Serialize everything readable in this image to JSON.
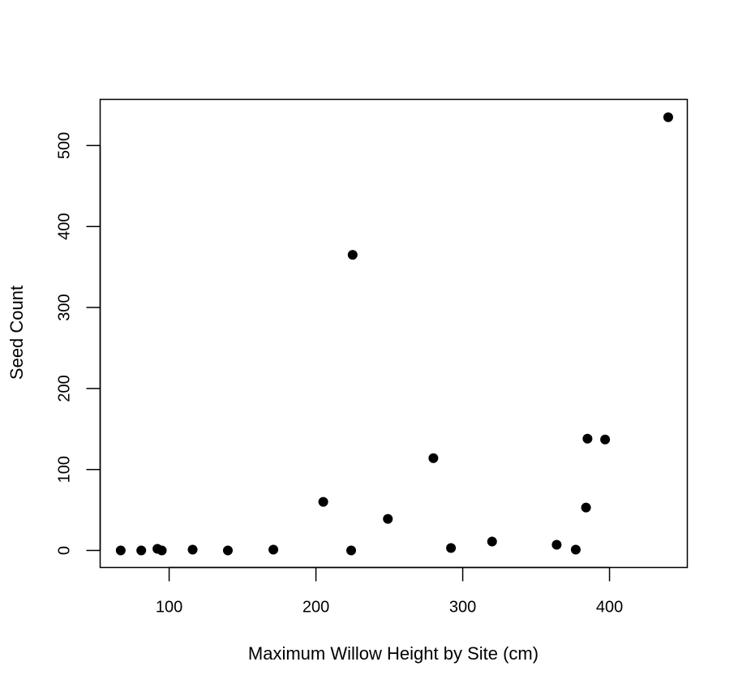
{
  "chart_data": {
    "type": "scatter",
    "title": "",
    "xlabel": "Maximum Willow Height by Site (cm)",
    "ylabel": "Seed Count",
    "xlim": [
      53,
      453
    ],
    "ylim": [
      -21,
      557
    ],
    "x_ticks": [
      100,
      200,
      300,
      400
    ],
    "y_ticks": [
      0,
      100,
      200,
      300,
      400,
      500
    ],
    "grid": false,
    "legend": "none",
    "marker_color": "#000000",
    "points": [
      {
        "x": 67,
        "y": 0
      },
      {
        "x": 81,
        "y": 0
      },
      {
        "x": 92,
        "y": 2
      },
      {
        "x": 95,
        "y": 0
      },
      {
        "x": 116,
        "y": 1
      },
      {
        "x": 140,
        "y": 0
      },
      {
        "x": 171,
        "y": 1
      },
      {
        "x": 205,
        "y": 60
      },
      {
        "x": 224,
        "y": 0
      },
      {
        "x": 225,
        "y": 365
      },
      {
        "x": 249,
        "y": 39
      },
      {
        "x": 280,
        "y": 114
      },
      {
        "x": 292,
        "y": 3
      },
      {
        "x": 320,
        "y": 11
      },
      {
        "x": 364,
        "y": 7
      },
      {
        "x": 377,
        "y": 1
      },
      {
        "x": 384,
        "y": 53
      },
      {
        "x": 385,
        "y": 138
      },
      {
        "x": 397,
        "y": 137
      },
      {
        "x": 440,
        "y": 535
      }
    ]
  }
}
